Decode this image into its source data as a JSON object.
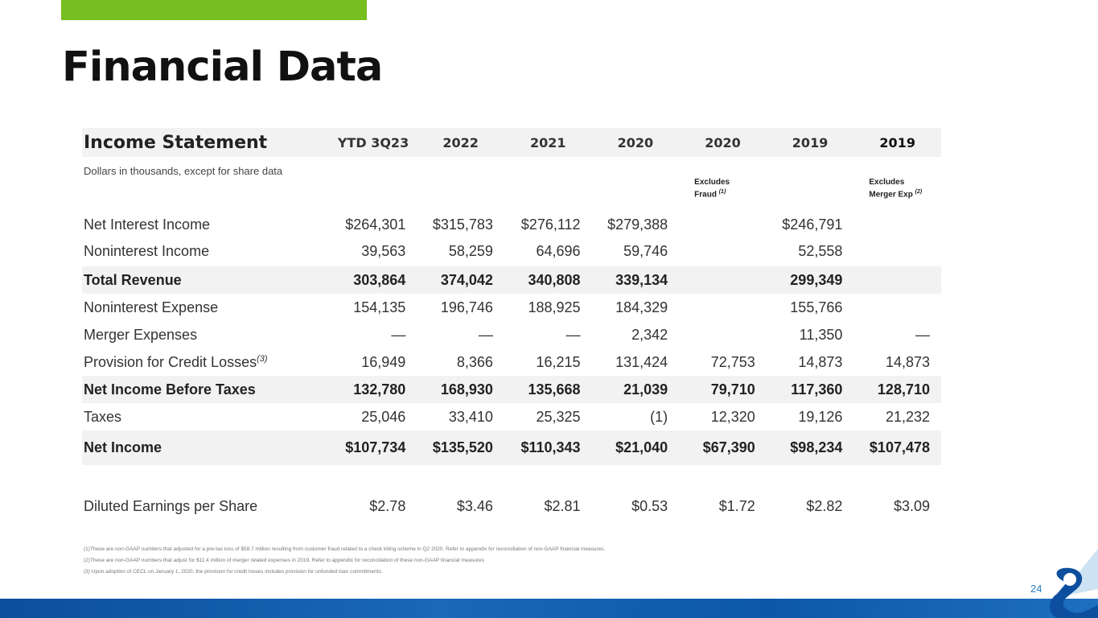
{
  "page": {
    "title": "Financial Data",
    "page_number": "24"
  },
  "table": {
    "heading": "Income Statement",
    "columns": [
      "YTD 3Q23",
      "2022",
      "2021",
      "2020",
      "2020",
      "2019",
      "2019"
    ],
    "unit_note": "Dollars in thousands, except for share data",
    "excludes_fraud": {
      "line1": "Excludes",
      "line2": "Fraud",
      "ref": "(1)"
    },
    "excludes_merger": {
      "line1": "Excludes",
      "line2": "Merger Exp",
      "ref": "(2)"
    },
    "rows": [
      {
        "label": "Net Interest Income",
        "values": [
          "$264,301",
          "$315,783",
          "$276,112",
          "$279,388",
          "",
          "$246,791",
          ""
        ]
      },
      {
        "label": "Noninterest Income",
        "values": [
          "39,563",
          "58,259",
          "64,696",
          "59,746",
          "",
          "52,558",
          ""
        ]
      },
      {
        "label": "Total Revenue",
        "values": [
          "303,864",
          "374,042",
          "340,808",
          "339,134",
          "",
          "299,349",
          ""
        ]
      },
      {
        "label": "Noninterest Expense",
        "values": [
          "154,135",
          "196,746",
          "188,925",
          "184,329",
          "",
          "155,766",
          ""
        ]
      },
      {
        "label": "Merger Expenses",
        "values": [
          "—",
          "—",
          "—",
          "2,342",
          "",
          "11,350",
          "—"
        ]
      },
      {
        "label": "Provision for Credit Losses",
        "label_ref": "(3)",
        "values": [
          "16,949",
          "8,366",
          "16,215",
          "131,424",
          "72,753",
          "14,873",
          "14,873"
        ]
      },
      {
        "label": "Net Income Before Taxes",
        "values": [
          "132,780",
          "168,930",
          "135,668",
          "21,039",
          "79,710",
          "117,360",
          "128,710"
        ]
      },
      {
        "label": "Taxes",
        "values": [
          "25,046",
          "33,410",
          "25,325",
          "(1)",
          "12,320",
          "19,126",
          "21,232"
        ]
      },
      {
        "label": "Net Income",
        "values": [
          "$107,734",
          "$135,520",
          "$110,343",
          "$21,040",
          "$67,390",
          "$98,234",
          "$107,478"
        ]
      },
      {
        "label": "Diluted Earnings per Share",
        "values": [
          "$2.78",
          "$3.46",
          "$2.81",
          "$0.53",
          "$1.72",
          "$2.82",
          "$3.09"
        ]
      }
    ]
  },
  "footnotes": [
    "(1)These are non-GAAP numbers that adjusted for a pre-tax loss of $58.7 million resulting from customer fraud related to a check kiting scheme in Q2 2020. Refer to appendix for reconciliation of non-GAAP financial measures.",
    "(2)These are non-GAAP numbers that adjust for $11.4 million of merger related expenses in 2019. Refer to appendix for reconciliation of these non-GAAP financial measures",
    "(3) Upon adoption of CECL on January 1, 2020, the provision for credit losses includes provision for unfunded loan commitments."
  ],
  "colors": {
    "accent": "#78be20",
    "band": "#0b4f9c",
    "logo": "#0d4f9e"
  }
}
